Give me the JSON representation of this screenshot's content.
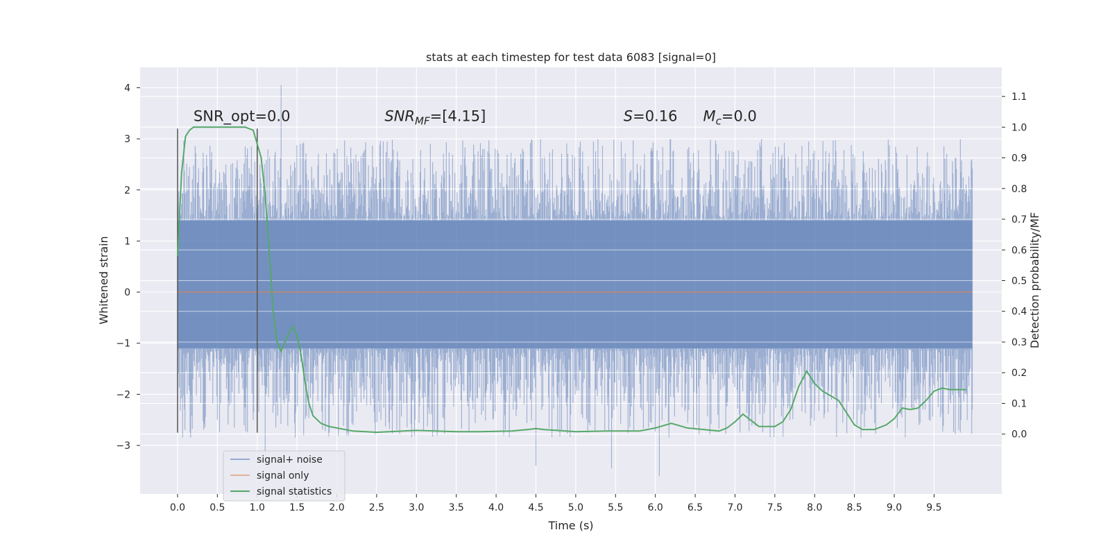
{
  "chart_data": {
    "type": "line",
    "title": "stats at each timestep for test data 6083 [signal=0]",
    "xlabel": "Time (s)",
    "ylabel": "Whitened strain",
    "y2label": "Detection probability/MF",
    "xlim": [
      -0.47,
      10.35
    ],
    "ylim": [
      -3.95,
      4.4
    ],
    "y2lim": [
      -0.195,
      1.195
    ],
    "x_ticks": [
      0.0,
      0.5,
      1.0,
      1.5,
      2.0,
      2.5,
      3.0,
      3.5,
      4.0,
      4.5,
      5.0,
      5.5,
      6.0,
      6.5,
      7.0,
      7.5,
      8.0,
      8.5,
      9.0,
      9.5
    ],
    "x_tick_labels": [
      "0.0",
      "0.5",
      "1.0",
      "1.5",
      "2.0",
      "2.5",
      "3.0",
      "3.5",
      "4.0",
      "4.5",
      "5.0",
      "5.5",
      "6.0",
      "6.5",
      "7.0",
      "7.5",
      "8.0",
      "8.5",
      "9.0",
      "9.5"
    ],
    "y_ticks": [
      -3,
      -2,
      -1,
      0,
      1,
      2,
      3,
      4
    ],
    "y_tick_labels": [
      "−3",
      "−2",
      "−1",
      "0",
      "1",
      "2",
      "3",
      "4"
    ],
    "y2_ticks": [
      0.0,
      0.1,
      0.2,
      0.3,
      0.4,
      0.5,
      0.6,
      0.7,
      0.8,
      0.9,
      1.0,
      1.1
    ],
    "y2_tick_labels": [
      "0.0",
      "0.1",
      "0.2",
      "0.3",
      "0.4",
      "0.5",
      "0.6",
      "0.7",
      "0.8",
      "0.9",
      "1.0",
      "1.1"
    ],
    "grid": true,
    "legend": {
      "placement": "lower-left",
      "entries": [
        {
          "label": "signal+ noise",
          "color": "#4c72b0"
        },
        {
          "label": "signal only",
          "color": "#dd8452"
        },
        {
          "label": "signal statistics",
          "color": "#55a868"
        }
      ]
    },
    "annotations": [
      {
        "prefix": "SNR_opt",
        "italic_var": "",
        "sub": "",
        "suffix": "=0.0",
        "x": 0.2
      },
      {
        "prefix": "",
        "italic_var": "SNR",
        "sub": "MF",
        "suffix": "=[4.15]",
        "x": 2.6
      },
      {
        "prefix": "",
        "italic_var": "S",
        "sub": "",
        "suffix": "=0.16",
        "x": 5.6
      },
      {
        "prefix": "",
        "italic_var": "M",
        "sub": "c",
        "suffix": "=0.0",
        "x": 6.6
      }
    ],
    "annotation_y": 3.35,
    "vertical_markers": [
      {
        "x": 0.0,
        "y_from": -2.75,
        "y_to": 3.2
      },
      {
        "x": 1.0,
        "y_from": -2.75,
        "y_to": 3.2
      }
    ],
    "series": [
      {
        "name": "signal+ noise",
        "kind": "noise",
        "x_range": [
          0.0,
          9.98
        ],
        "band": [
          -1.1,
          1.4
        ],
        "envelope_start": [
          -2.75,
          2.7
        ],
        "peak_max": 4.05,
        "peak_min": -3.6,
        "color": "#4c72b0"
      },
      {
        "name": "signal only",
        "kind": "line",
        "x": [
          0.0,
          9.98
        ],
        "values": [
          0.0,
          0.0
        ],
        "color": "#dd8452"
      },
      {
        "name": "signal statistics",
        "kind": "line",
        "axis": "right",
        "color": "#55a868",
        "x": [
          0.0,
          0.05,
          0.1,
          0.15,
          0.2,
          0.3,
          0.5,
          0.7,
          0.85,
          0.95,
          1.05,
          1.1,
          1.15,
          1.2,
          1.25,
          1.3,
          1.35,
          1.4,
          1.45,
          1.5,
          1.55,
          1.6,
          1.65,
          1.7,
          1.8,
          1.9,
          2.0,
          2.2,
          2.5,
          3.0,
          3.5,
          3.8,
          4.2,
          4.4,
          4.5,
          4.6,
          5.0,
          5.4,
          5.8,
          6.0,
          6.2,
          6.4,
          6.8,
          6.9,
          7.0,
          7.1,
          7.2,
          7.3,
          7.5,
          7.6,
          7.7,
          7.8,
          7.9,
          8.0,
          8.1,
          8.2,
          8.3,
          8.4,
          8.5,
          8.6,
          8.75,
          8.9,
          9.0,
          9.1,
          9.2,
          9.3,
          9.4,
          9.5,
          9.6,
          9.7,
          9.8,
          9.9
        ],
        "values": [
          0.58,
          0.85,
          0.97,
          0.99,
          1.0,
          1.0,
          1.0,
          1.0,
          1.0,
          0.99,
          0.9,
          0.78,
          0.6,
          0.4,
          0.3,
          0.27,
          0.3,
          0.33,
          0.35,
          0.32,
          0.26,
          0.17,
          0.1,
          0.06,
          0.035,
          0.025,
          0.02,
          0.01,
          0.006,
          0.012,
          0.008,
          0.008,
          0.01,
          0.015,
          0.018,
          0.015,
          0.008,
          0.01,
          0.01,
          0.02,
          0.035,
          0.02,
          0.01,
          0.02,
          0.04,
          0.065,
          0.045,
          0.025,
          0.025,
          0.04,
          0.08,
          0.155,
          0.205,
          0.165,
          0.14,
          0.125,
          0.11,
          0.07,
          0.03,
          0.015,
          0.015,
          0.03,
          0.05,
          0.085,
          0.08,
          0.085,
          0.11,
          0.14,
          0.15,
          0.145,
          0.145,
          0.145
        ]
      }
    ]
  }
}
